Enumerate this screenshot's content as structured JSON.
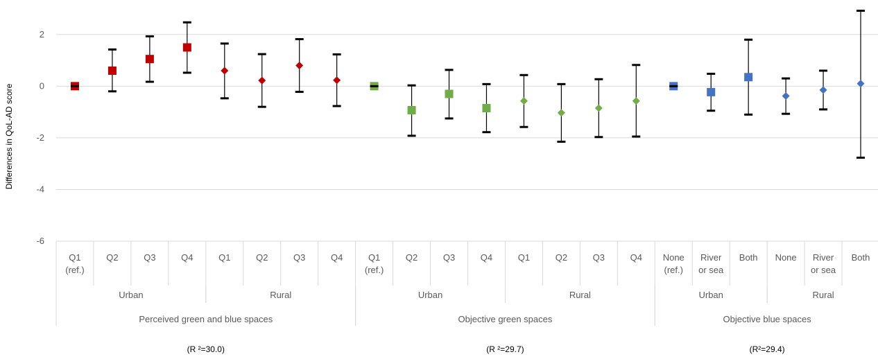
{
  "chart_data": {
    "type": "scatter",
    "ylabel": "Differences in QoL-AD score",
    "ylim": [
      -6,
      3
    ],
    "yticks": [
      2,
      0,
      -2,
      -4,
      -6
    ],
    "grid": true,
    "categories": [
      "Q1\n(ref.)",
      "Q2",
      "Q3",
      "Q4",
      "Q1",
      "Q2",
      "Q3",
      "Q4",
      "Q1\n(ref.)",
      "Q2",
      "Q3",
      "Q4",
      "Q1",
      "Q2",
      "Q3",
      "Q4",
      "None\n(ref.)",
      "River\nor sea",
      "Both",
      "None",
      "River\nor sea",
      "Both"
    ],
    "subgroups": [
      {
        "label": "Urban",
        "start": 0,
        "count": 4
      },
      {
        "label": "Rural",
        "start": 4,
        "count": 4
      },
      {
        "label": "Urban",
        "start": 8,
        "count": 4
      },
      {
        "label": "Rural",
        "start": 12,
        "count": 4
      },
      {
        "label": "Urban",
        "start": 16,
        "count": 3
      },
      {
        "label": "Rural",
        "start": 19,
        "count": 3
      }
    ],
    "groups": [
      {
        "label": "Perceived green and blue spaces",
        "start": 0,
        "count": 8,
        "r2": "(R ²=30.0)"
      },
      {
        "label": "Objective green spaces",
        "start": 8,
        "count": 8,
        "r2": "(R ²=29.7)"
      },
      {
        "label": "Objective blue spaces",
        "start": 16,
        "count": 6,
        "r2": "(R²=29.4)"
      }
    ],
    "points": [
      {
        "value": 0.0,
        "low": 0.0,
        "high": 0.0,
        "marker": "square",
        "color": "#c00000"
      },
      {
        "value": 0.6,
        "low": -0.2,
        "high": 1.42,
        "marker": "square",
        "color": "#c00000"
      },
      {
        "value": 1.05,
        "low": 0.17,
        "high": 1.93,
        "marker": "square",
        "color": "#c00000"
      },
      {
        "value": 1.5,
        "low": 0.52,
        "high": 2.47,
        "marker": "square",
        "color": "#c00000"
      },
      {
        "value": 0.6,
        "low": -0.47,
        "high": 1.65,
        "marker": "diamond",
        "color": "#c00000"
      },
      {
        "value": 0.22,
        "low": -0.8,
        "high": 1.24,
        "marker": "diamond",
        "color": "#c00000"
      },
      {
        "value": 0.8,
        "low": -0.22,
        "high": 1.82,
        "marker": "diamond",
        "color": "#c00000"
      },
      {
        "value": 0.23,
        "low": -0.77,
        "high": 1.23,
        "marker": "diamond",
        "color": "#c00000"
      },
      {
        "value": 0.0,
        "low": 0.0,
        "high": 0.0,
        "marker": "square",
        "color": "#70ad47"
      },
      {
        "value": -0.93,
        "low": -1.92,
        "high": 0.03,
        "marker": "square",
        "color": "#70ad47"
      },
      {
        "value": -0.3,
        "low": -1.25,
        "high": 0.63,
        "marker": "square",
        "color": "#70ad47"
      },
      {
        "value": -0.85,
        "low": -1.78,
        "high": 0.08,
        "marker": "square",
        "color": "#70ad47"
      },
      {
        "value": -0.57,
        "low": -1.58,
        "high": 0.43,
        "marker": "diamond",
        "color": "#70ad47"
      },
      {
        "value": -1.03,
        "low": -2.15,
        "high": 0.08,
        "marker": "diamond",
        "color": "#70ad47"
      },
      {
        "value": -0.85,
        "low": -1.97,
        "high": 0.27,
        "marker": "diamond",
        "color": "#70ad47"
      },
      {
        "value": -0.57,
        "low": -1.95,
        "high": 0.82,
        "marker": "diamond",
        "color": "#70ad47"
      },
      {
        "value": 0.0,
        "low": 0.0,
        "high": 0.0,
        "marker": "square",
        "color": "#4472c4"
      },
      {
        "value": -0.23,
        "low": -0.95,
        "high": 0.48,
        "marker": "square",
        "color": "#4472c4"
      },
      {
        "value": 0.35,
        "low": -1.1,
        "high": 1.8,
        "marker": "square",
        "color": "#4472c4"
      },
      {
        "value": -0.38,
        "low": -1.07,
        "high": 0.3,
        "marker": "diamond",
        "color": "#4472c4"
      },
      {
        "value": -0.15,
        "low": -0.9,
        "high": 0.6,
        "marker": "diamond",
        "color": "#4472c4"
      },
      {
        "value": 0.1,
        "low": -2.77,
        "high": 2.92,
        "marker": "diamond",
        "color": "#4472c4"
      }
    ]
  },
  "colors": {
    "grid": "#d9d9d9",
    "axis_text": "#595959",
    "error_bar": "#000000"
  }
}
